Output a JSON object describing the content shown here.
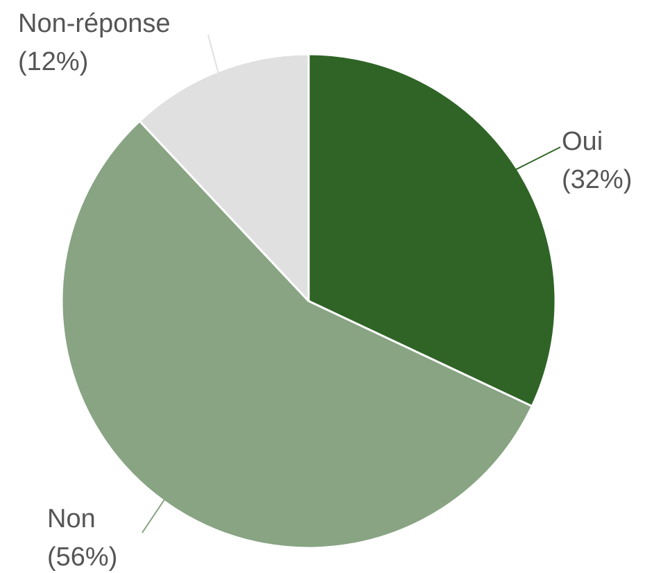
{
  "chart_data": {
    "type": "pie",
    "slices": [
      {
        "label": "Oui",
        "value": 32,
        "percent_text": "(32%)",
        "color": "#2f6426"
      },
      {
        "label": "Non",
        "value": 56,
        "percent_text": "(56%)",
        "color": "#88a483"
      },
      {
        "label": "Non-réponse",
        "value": 12,
        "percent_text": "(12%)",
        "color": "#e0e0e0"
      }
    ],
    "start_angle": "12 o'clock",
    "direction": "clockwise",
    "legend": "none",
    "labels": "outside with leader lines"
  }
}
